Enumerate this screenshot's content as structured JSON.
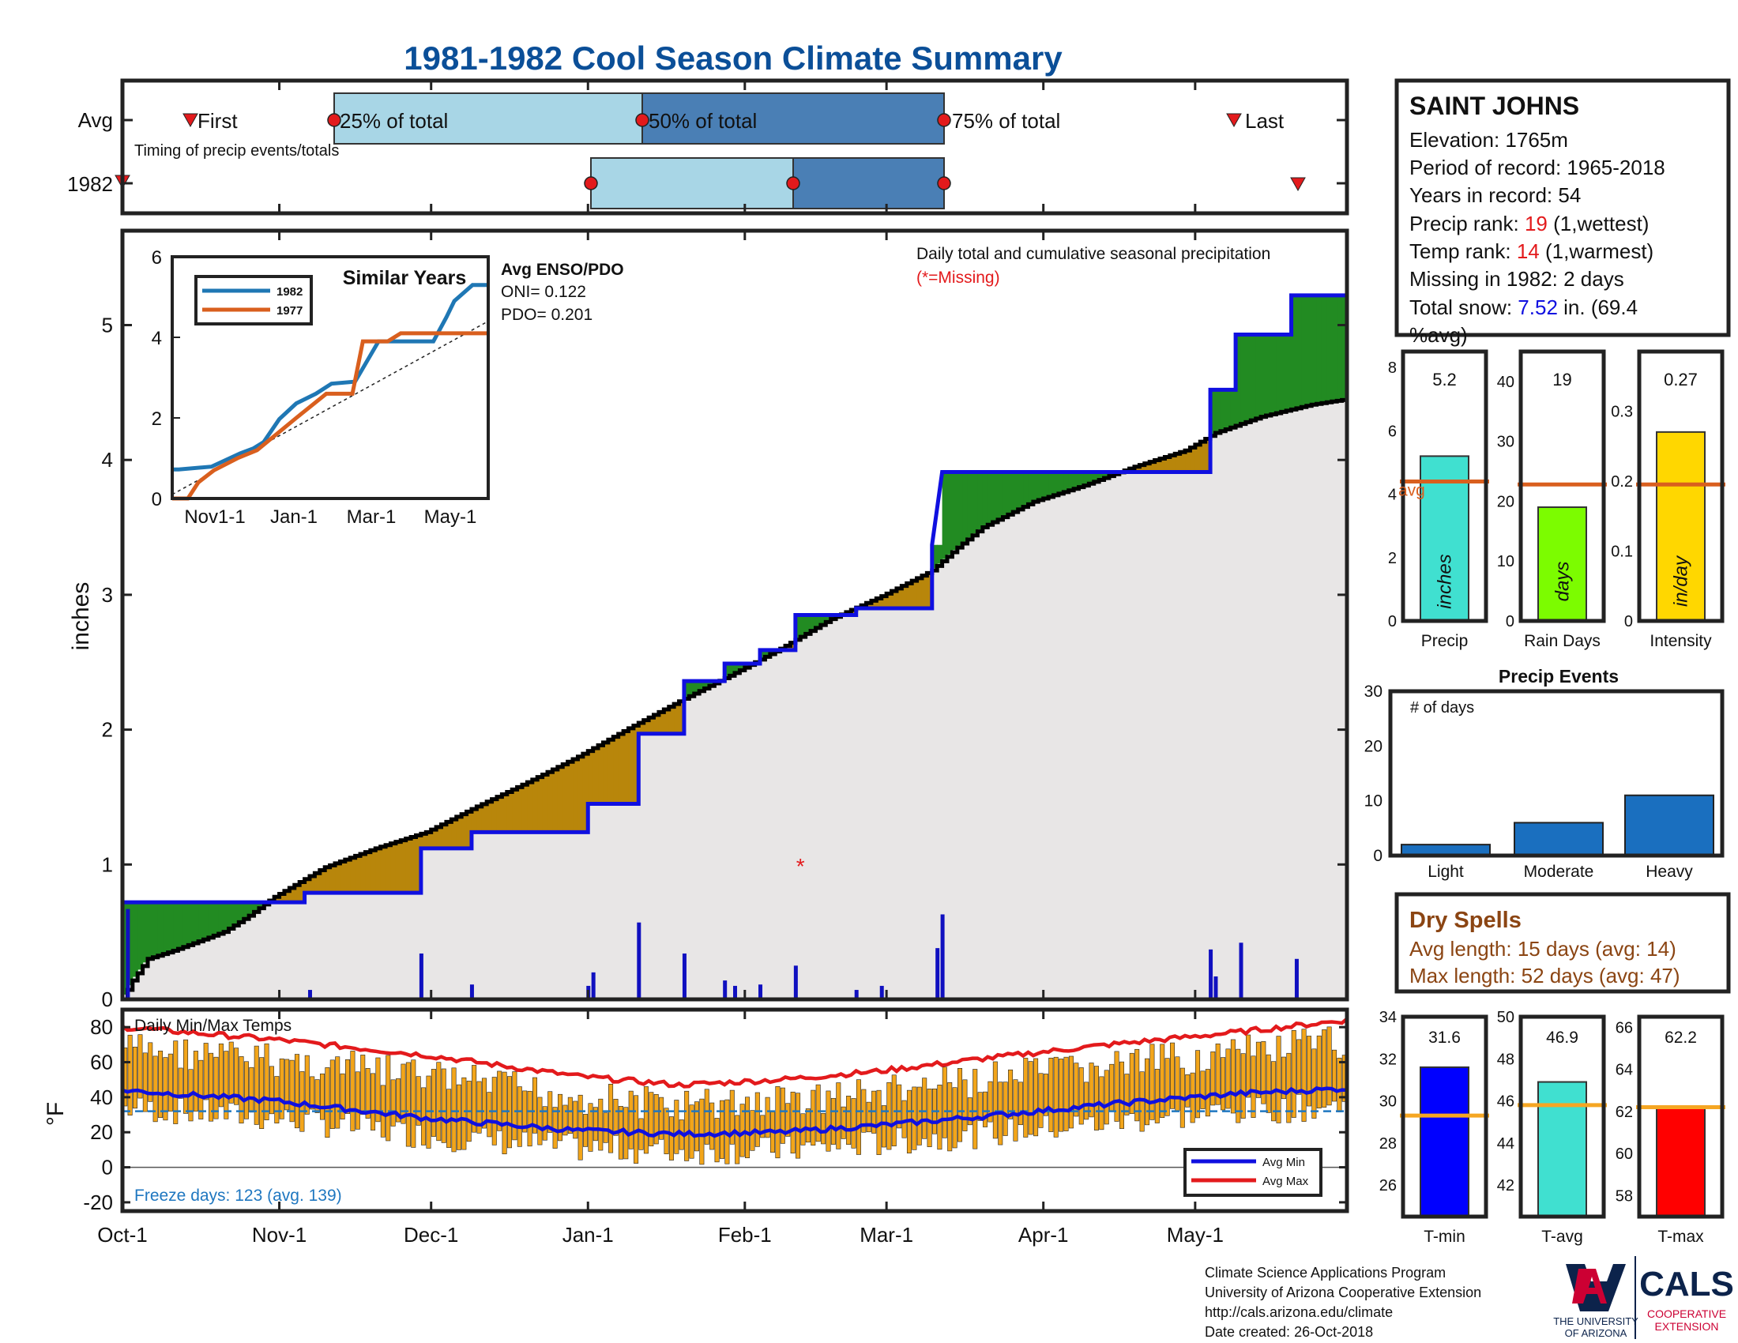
{
  "title": "1981-1982 Cool Season Climate Summary",
  "colors": {
    "title": "#0b4f98",
    "precip_above": "#228b22",
    "precip_below": "#b8860b",
    "cum_line": "#1010e0",
    "avg_fill": "#e8e6e6",
    "temp_bar": "#f2a51a",
    "avg_max": "#e31a1c",
    "avg_min": "#1010e0",
    "freeze": "#1f77c0",
    "light_bar": "#a8d6e6",
    "dark_bar": "#4a7fb5",
    "snow_val": "#1010e0",
    "rank_val": "#e31a1c",
    "dry": "#8b4513"
  },
  "months": [
    "Oct-1",
    "Nov-1",
    "Dec-1",
    "Jan-1",
    "Feb-1",
    "Mar-1",
    "Apr-1",
    "May-1"
  ],
  "timing": {
    "row_labels": [
      "Avg",
      "1982"
    ],
    "first_label": "First",
    "last_label": "Last",
    "p25_label": "25% of total",
    "p50_label": "50% of total",
    "p75_label": "75% of total",
    "caption": "Timing of precip events/totals"
  },
  "precip_panel": {
    "ylabel": "inches",
    "yticks": [
      "0",
      "1",
      "2",
      "3",
      "4",
      "5"
    ],
    "note": "Daily total and cumulative seasonal precipitation",
    "missing_note": "(*=Missing)",
    "missing_marker": "*"
  },
  "inset": {
    "title": "Similar Years",
    "legend": [
      "1982",
      "1977"
    ],
    "yticks": [
      "0",
      "2",
      "4",
      "6"
    ],
    "xticks": [
      "Nov1-1",
      "Jan-1",
      "Mar-1",
      "May-1"
    ],
    "enso_title": "Avg ENSO/PDO",
    "oni": "ONI= 0.122",
    "pdo": "PDO= 0.201"
  },
  "temp_panel": {
    "ylabel": "°F",
    "yticks": [
      "80",
      "60",
      "40",
      "20",
      "0",
      "-20"
    ],
    "title": "Daily Min/Max Temps",
    "freeze_text": "Freeze days: 123 (avg. 139)",
    "legend_min": "Avg Min",
    "legend_max": "Avg Max"
  },
  "station": {
    "name": "SAINT JOHNS",
    "elevation": "Elevation: 1765m",
    "period": "Period of record: 1965-2018",
    "years": "Years in record: 54",
    "precip_rank_label": "Precip rank: ",
    "precip_rank_value": "19",
    "precip_rank_suffix": " (1,wettest)",
    "temp_rank_label": "Temp rank: ",
    "temp_rank_value": "14",
    "temp_rank_suffix": " (1,warmest)",
    "missing": "Missing in 1982: 2 days",
    "snow_label": "Total snow: ",
    "snow_value": "7.52",
    "snow_suffix": " in. (69.4",
    "snow_suffix2": "%avg)"
  },
  "mini_bars": [
    {
      "name": "Precip",
      "value": 5.2,
      "value_label": "5.2",
      "avg": 4.4,
      "ymin": 0,
      "ymax": 8.5,
      "yticks": [
        "0",
        "2",
        "4",
        "6",
        "8"
      ],
      "unit": "inches",
      "avg_label": "avg",
      "color": "#40e0d0"
    },
    {
      "name": "Rain Days",
      "value": 19,
      "value_label": "19",
      "avg": 22.8,
      "ymin": 0,
      "ymax": 45,
      "yticks": [
        "0",
        "10",
        "20",
        "30",
        "40"
      ],
      "unit": "days",
      "color": "#7cfc00"
    },
    {
      "name": "Intensity",
      "value": 0.27,
      "value_label": "0.27",
      "avg": 0.195,
      "ymin": 0,
      "ymax": 0.385,
      "yticks": [
        "0",
        "0.1",
        "0.2",
        "0.3"
      ],
      "unit": "in/day",
      "color": "#ffd700"
    }
  ],
  "events": {
    "title": "Precip Events",
    "ylabel": "# of days",
    "yticks": [
      "0",
      "10",
      "20",
      "30"
    ],
    "categories": [
      "Light",
      "Moderate",
      "Heavy"
    ],
    "values": [
      2,
      6,
      11
    ]
  },
  "dry_spells": {
    "title": "Dry Spells",
    "avg_length": "Avg length: 15 days (avg: 14)",
    "max_length": "Max length: 52 days (avg: 47)"
  },
  "temp_bars": [
    {
      "name": "T-min",
      "value": 31.6,
      "value_label": "31.6",
      "avg": 29.3,
      "ymin": 24.5,
      "ymax": 34,
      "yticks": [
        "26",
        "28",
        "30",
        "32",
        "34"
      ],
      "color": "#0000ff"
    },
    {
      "name": "T-avg",
      "value": 46.9,
      "value_label": "46.9",
      "avg": 45.8,
      "ymin": 40.5,
      "ymax": 50,
      "yticks": [
        "42",
        "44",
        "46",
        "48",
        "50"
      ],
      "color": "#40e0d0"
    },
    {
      "name": "T-max",
      "value": 62.2,
      "value_label": "62.2",
      "avg": 62.2,
      "ymin": 57,
      "ymax": 66.5,
      "yticks": [
        "58",
        "60",
        "62",
        "64",
        "66"
      ],
      "color": "#ff0000"
    }
  ],
  "footer": {
    "line1": "Climate Science Applications Program",
    "line2": "University of Arizona Cooperative Extension",
    "line3": "http://cals.arizona.edu/climate",
    "line4": " Date created: 26-Oct-2018",
    "ua_line1": "THE UNIVERSITY",
    "ua_line2": "OF ARIZONA",
    "cals": "CALS",
    "coop1": "COOPERATIVE",
    "coop2": "EXTENSION"
  },
  "chart_data": [
    {
      "type": "line",
      "title": "Daily total and cumulative seasonal precipitation",
      "ylabel": "inches",
      "ylim": [
        0,
        5.7
      ],
      "x_domain_days": [
        0,
        242
      ],
      "series": [
        {
          "name": "1982",
          "points": [
            [
              0,
              0.72
            ],
            [
              3,
              0.72
            ],
            [
              36,
              0.72
            ],
            [
              36,
              0.79
            ],
            [
              59,
              0.79
            ],
            [
              59,
              1.12
            ],
            [
              69,
              1.12
            ],
            [
              69,
              1.24
            ],
            [
              92,
              1.24
            ],
            [
              92,
              1.45
            ],
            [
              102,
              1.45
            ],
            [
              102,
              1.97
            ],
            [
              111,
              1.97
            ],
            [
              111,
              2.36
            ],
            [
              119,
              2.36
            ],
            [
              119,
              2.49
            ],
            [
              126,
              2.49
            ],
            [
              126,
              2.59
            ],
            [
              133,
              2.59
            ],
            [
              133,
              2.85
            ],
            [
              145,
              2.85
            ],
            [
              145,
              2.9
            ],
            [
              160,
              2.9
            ],
            [
              160,
              3.37
            ],
            [
              162,
              3.91
            ],
            [
              215,
              3.91
            ],
            [
              215,
              4.52
            ],
            [
              220,
              4.52
            ],
            [
              220,
              4.93
            ],
            [
              231,
              4.93
            ],
            [
              231,
              5.22
            ],
            [
              242,
              5.22
            ]
          ]
        },
        {
          "name": "Avg",
          "points": [
            [
              0,
              0
            ],
            [
              2,
              0.14
            ],
            [
              5,
              0.3
            ],
            [
              10,
              0.36
            ],
            [
              20,
              0.5
            ],
            [
              25,
              0.62
            ],
            [
              30,
              0.76
            ],
            [
              40,
              0.98
            ],
            [
              50,
              1.12
            ],
            [
              60,
              1.24
            ],
            [
              70,
              1.43
            ],
            [
              80,
              1.61
            ],
            [
              90,
              1.8
            ],
            [
              100,
              2.01
            ],
            [
              110,
              2.21
            ],
            [
              120,
              2.4
            ],
            [
              130,
              2.6
            ],
            [
              140,
              2.82
            ],
            [
              150,
              2.99
            ],
            [
              160,
              3.18
            ],
            [
              165,
              3.35
            ],
            [
              170,
              3.5
            ],
            [
              180,
              3.69
            ],
            [
              190,
              3.81
            ],
            [
              200,
              3.95
            ],
            [
              210,
              4.07
            ],
            [
              216,
              4.2
            ],
            [
              225,
              4.32
            ],
            [
              235,
              4.41
            ],
            [
              242,
              4.45
            ]
          ]
        }
      ],
      "daily_bars": [
        [
          1,
          0.67
        ],
        [
          37,
          0.07
        ],
        [
          59,
          0.34
        ],
        [
          69,
          0.11
        ],
        [
          92,
          0.1
        ],
        [
          93,
          0.2
        ],
        [
          102,
          0.57
        ],
        [
          111,
          0.34
        ],
        [
          119,
          0.14
        ],
        [
          121,
          0.1
        ],
        [
          126,
          0.11
        ],
        [
          133,
          0.25
        ],
        [
          145,
          0.07
        ],
        [
          150,
          0.1
        ],
        [
          161,
          0.38
        ],
        [
          162,
          0.63
        ],
        [
          215,
          0.37
        ],
        [
          216,
          0.17
        ],
        [
          221,
          0.42
        ],
        [
          232,
          0.3
        ]
      ],
      "missing_days": [
        [
          134,
          0.99
        ]
      ]
    },
    {
      "type": "line",
      "title": "Similar Years",
      "ylim": [
        0,
        6
      ],
      "series": [
        {
          "name": "1982",
          "points": [
            [
              0,
              0.72
            ],
            [
              5,
              0.72
            ],
            [
              30,
              0.79
            ],
            [
              52,
              1.12
            ],
            [
              62,
              1.24
            ],
            [
              70,
              1.4
            ],
            [
              82,
              1.97
            ],
            [
              95,
              2.36
            ],
            [
              110,
              2.6
            ],
            [
              122,
              2.85
            ],
            [
              140,
              2.9
            ],
            [
              158,
              3.9
            ],
            [
              200,
              3.9
            ],
            [
              210,
              4.5
            ],
            [
              216,
              4.9
            ],
            [
              230,
              5.3
            ],
            [
              242,
              5.3
            ]
          ]
        },
        {
          "name": "1977",
          "points": [
            [
              0,
              0
            ],
            [
              12,
              0
            ],
            [
              20,
              0.4
            ],
            [
              32,
              0.7
            ],
            [
              50,
              1
            ],
            [
              65,
              1.2
            ],
            [
              80,
              1.6
            ],
            [
              95,
              2
            ],
            [
              118,
              2.6
            ],
            [
              138,
              2.6
            ],
            [
              146,
              3.9
            ],
            [
              165,
              3.9
            ],
            [
              175,
              4.1
            ],
            [
              200,
              4.1
            ],
            [
              242,
              4.1
            ]
          ]
        }
      ]
    },
    {
      "type": "bar",
      "title": "Daily Min/Max Temps",
      "ylabel": "°F",
      "ylim": [
        -25,
        90
      ],
      "series": [
        {
          "name": "Avg Max",
          "points": [
            [
              0,
              80
            ],
            [
              30,
              73
            ],
            [
              60,
              64
            ],
            [
              90,
              52
            ],
            [
              110,
              47
            ],
            [
              130,
              50
            ],
            [
              150,
              55
            ],
            [
              170,
              62
            ],
            [
              195,
              70
            ],
            [
              220,
              77
            ],
            [
              242,
              84
            ]
          ]
        },
        {
          "name": "Avg Min",
          "points": [
            [
              0,
              44
            ],
            [
              30,
              38
            ],
            [
              60,
              28
            ],
            [
              90,
              21
            ],
            [
              110,
              19
            ],
            [
              130,
              20
            ],
            [
              150,
              24
            ],
            [
              170,
              29
            ],
            [
              195,
              36
            ],
            [
              220,
              42
            ],
            [
              242,
              45
            ]
          ]
        }
      ],
      "freeze_threshold": 32
    }
  ]
}
